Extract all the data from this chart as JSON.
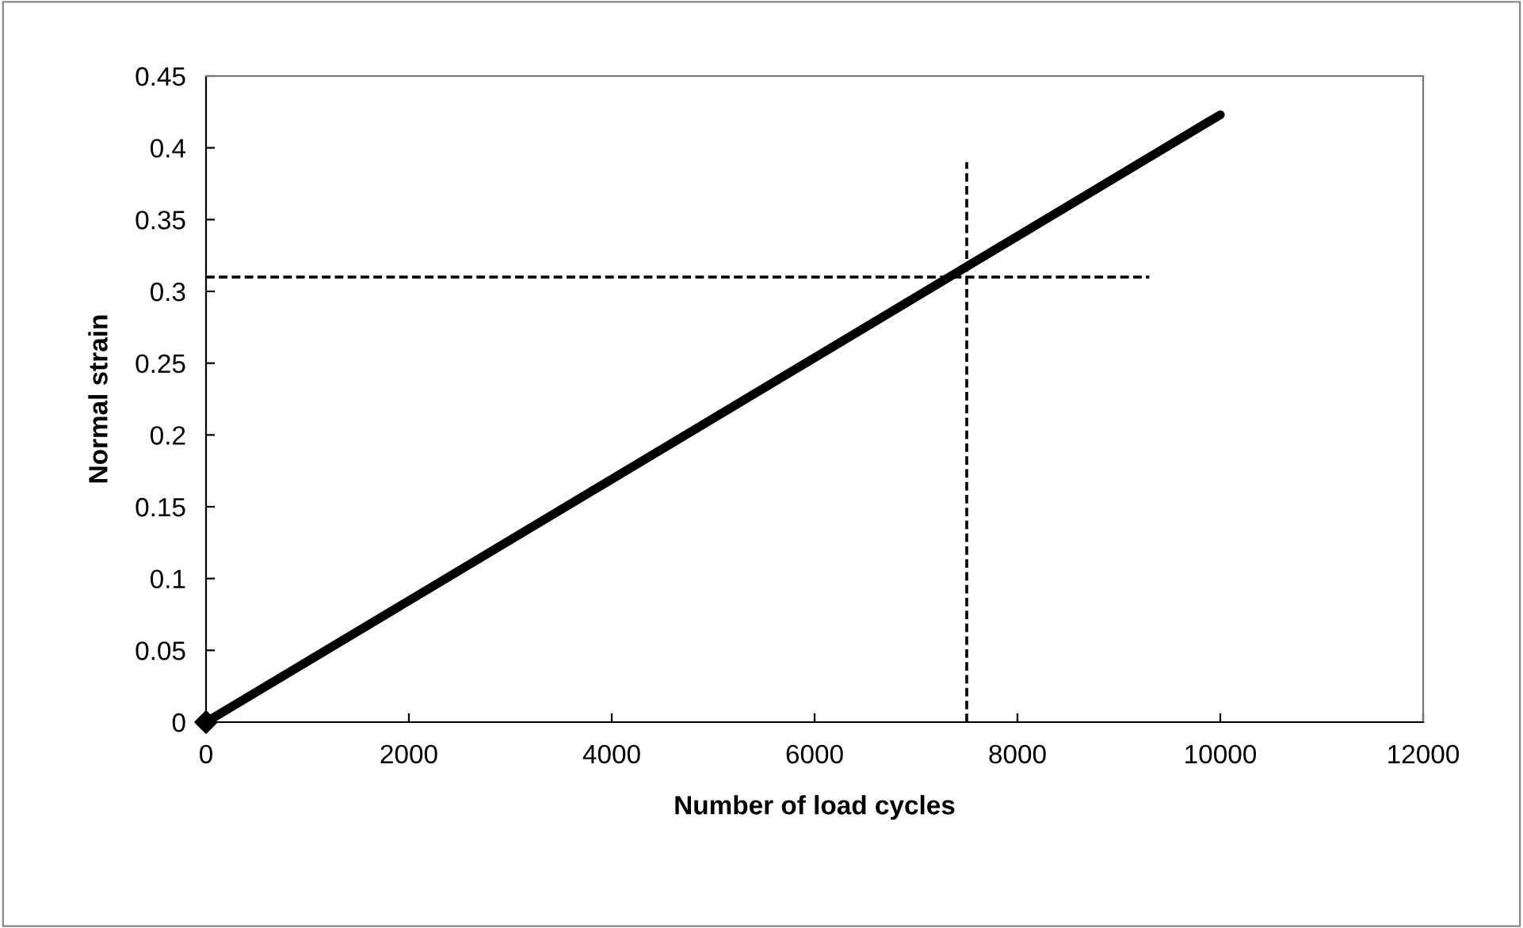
{
  "chart_data": {
    "type": "line",
    "xlabel": "Number of load cycles",
    "ylabel": "Normal strain",
    "xlim": [
      0,
      12000
    ],
    "xticks": [
      0,
      2000,
      4000,
      6000,
      8000,
      10000,
      12000
    ],
    "ylim": [
      0,
      0.45
    ],
    "yticks": [
      0,
      0.05,
      0.1,
      0.15,
      0.2,
      0.25,
      0.3,
      0.35,
      0.4,
      0.45
    ],
    "grid": false,
    "legend": false,
    "series": [
      {
        "color": "#000000",
        "x": [
          0,
          10000
        ],
        "values": [
          0,
          0.423
        ],
        "line_style": "solid",
        "marker": "none"
      },
      {
        "type": "scatter",
        "color": "#000000",
        "x": [
          0
        ],
        "values": [
          0
        ],
        "marker": "diamond"
      },
      {
        "color": "#000000",
        "x": [
          0,
          9300
        ],
        "values": [
          0.31,
          0.31
        ],
        "line_style": "dashed",
        "marker": "none"
      },
      {
        "color": "#000000",
        "x": [
          7500,
          7500
        ],
        "values": [
          0,
          0.39
        ],
        "line_style": "dashed",
        "marker": "none"
      }
    ]
  }
}
